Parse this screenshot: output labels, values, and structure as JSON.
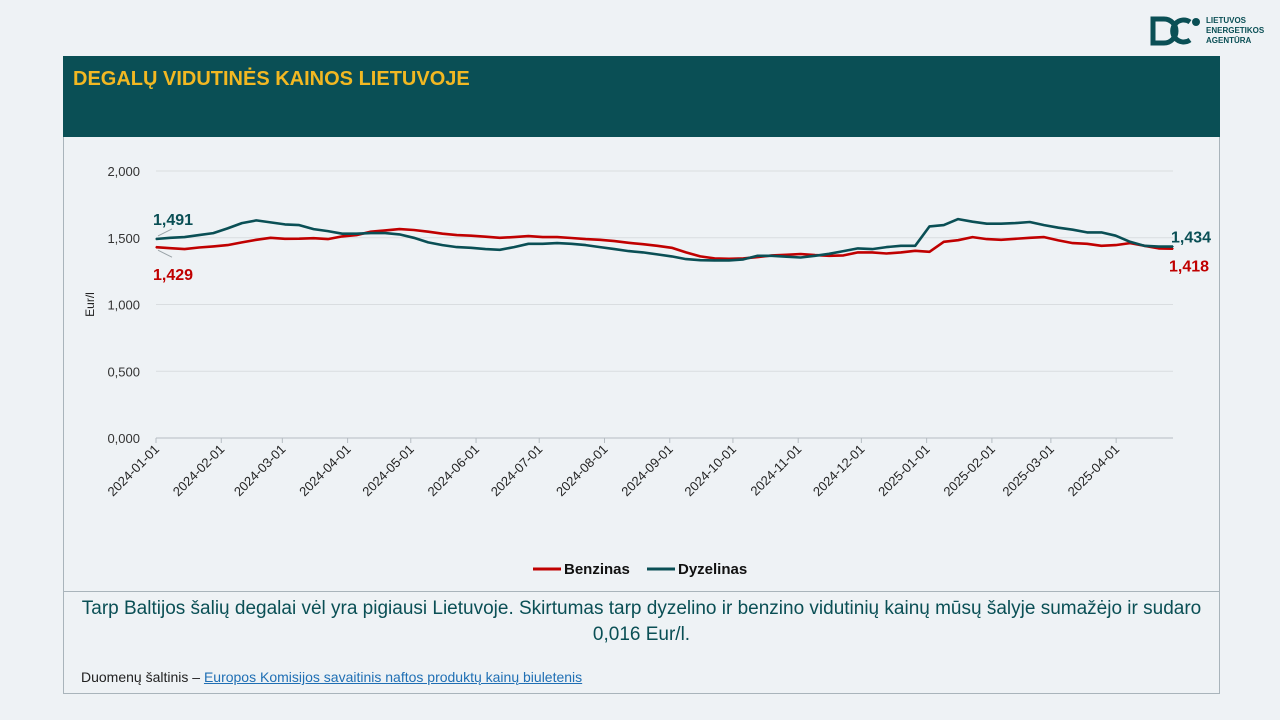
{
  "logo": {
    "name_lines": [
      "LIETUVOS",
      "ENERGETIKOS",
      "AGENTŪRA"
    ]
  },
  "header": {
    "title": "DEGALŲ VIDUTINĖS KAINOS LIETUVOJE"
  },
  "summary": "Tarp Baltijos šalių degalai vėl yra pigiausi Lietuvoje. Skirtumas tarp dyzelino ir benzino vidutinių kainų mūsų šalyje sumažėjo ir sudaro 0,016 Eur/l.",
  "source": {
    "prefix": "Duomenų šaltinis – ",
    "link_text": "Europos Komisijos savaitinis naftos produktų kainų biuletenis"
  },
  "colors": {
    "benzinas": "#c00000",
    "dyzelinas": "#0a4f55",
    "title": "#f2b822",
    "banner": "#0a4f55"
  },
  "chart_data": {
    "type": "line",
    "ylabel": "Eur/l",
    "ylim": [
      0,
      2
    ],
    "yticks": [
      "0,000",
      "0,500",
      "1,000",
      "1,500",
      "2,000"
    ],
    "x_start": "2024-01-01",
    "x_end": "2025-04-28",
    "xticks": [
      "2024-01-01",
      "2024-02-01",
      "2024-03-01",
      "2024-04-01",
      "2024-05-01",
      "2024-06-01",
      "2024-07-01",
      "2024-08-01",
      "2024-09-01",
      "2024-10-01",
      "2024-11-01",
      "2024-12-01",
      "2025-01-01",
      "2025-02-01",
      "2025-03-01",
      "2025-04-01"
    ],
    "legend": "bottom",
    "series": [
      {
        "name": "Benzinas",
        "color": "#c00000",
        "start_label": "1,429",
        "end_label": "1,418",
        "values": [
          1.429,
          1.422,
          1.415,
          1.427,
          1.435,
          1.445,
          1.465,
          1.485,
          1.5,
          1.492,
          1.493,
          1.497,
          1.49,
          1.51,
          1.52,
          1.545,
          1.555,
          1.565,
          1.558,
          1.545,
          1.53,
          1.52,
          1.515,
          1.508,
          1.5,
          1.505,
          1.512,
          1.505,
          1.505,
          1.498,
          1.49,
          1.485,
          1.475,
          1.462,
          1.452,
          1.44,
          1.425,
          1.39,
          1.36,
          1.345,
          1.342,
          1.345,
          1.355,
          1.368,
          1.372,
          1.378,
          1.37,
          1.365,
          1.368,
          1.39,
          1.39,
          1.382,
          1.39,
          1.402,
          1.395,
          1.47,
          1.482,
          1.505,
          1.49,
          1.485,
          1.492,
          1.5,
          1.505,
          1.48,
          1.46,
          1.455,
          1.44,
          1.445,
          1.46,
          1.44,
          1.42,
          1.418
        ]
      },
      {
        "name": "Dyzelinas",
        "color": "#0a4f55",
        "start_label": "1,491",
        "end_label": "1,434",
        "values": [
          1.491,
          1.5,
          1.505,
          1.52,
          1.535,
          1.57,
          1.61,
          1.63,
          1.615,
          1.6,
          1.595,
          1.565,
          1.55,
          1.53,
          1.53,
          1.535,
          1.535,
          1.525,
          1.5,
          1.465,
          1.445,
          1.43,
          1.425,
          1.415,
          1.41,
          1.43,
          1.455,
          1.455,
          1.46,
          1.455,
          1.445,
          1.43,
          1.415,
          1.4,
          1.39,
          1.375,
          1.36,
          1.34,
          1.332,
          1.33,
          1.33,
          1.338,
          1.365,
          1.365,
          1.358,
          1.352,
          1.365,
          1.38,
          1.4,
          1.42,
          1.415,
          1.43,
          1.44,
          1.44,
          1.585,
          1.595,
          1.64,
          1.62,
          1.605,
          1.605,
          1.61,
          1.618,
          1.595,
          1.575,
          1.56,
          1.54,
          1.54,
          1.515,
          1.47,
          1.44,
          1.434,
          1.434
        ]
      }
    ]
  }
}
